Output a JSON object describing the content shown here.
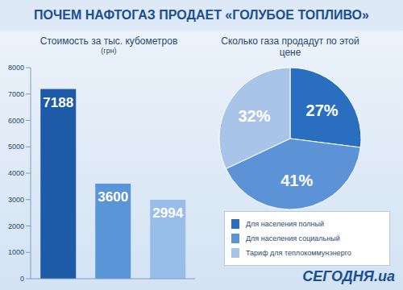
{
  "title": "ПОЧЕМ НАФТОГАЗ ПРОДАЕТ «ГОЛУБОЕ ТОПЛИВО»",
  "source": "СЕГОДНЯ.ua",
  "chart_data": [
    {
      "type": "bar",
      "title": "Стоимость за тыс. кубометров",
      "subtitle": "(грн)",
      "categories": [
        "Для населения полный",
        "Для населения социальный",
        "Тариф для теплокоммунэнерго"
      ],
      "values": [
        7188,
        3600,
        2994
      ],
      "colors": [
        "#1d5aa8",
        "#5a95d8",
        "#98bde8"
      ],
      "ylim": [
        0,
        8000
      ],
      "yticks": [
        0,
        1000,
        2000,
        3000,
        4000,
        5000,
        6000,
        7000,
        8000
      ],
      "grid": false,
      "data_labels": true,
      "tick_labels": "y"
    },
    {
      "type": "pie",
      "title": "Сколько газа продадут по этой цене",
      "categories": [
        "Для населения полный",
        "Для населения социальный",
        "Тариф для теплокоммунэнерго"
      ],
      "values": [
        27,
        41,
        32
      ],
      "value_labels": [
        "27%",
        "41%",
        "32%"
      ],
      "colors": [
        "#2a6fbf",
        "#5c92d6",
        "#a8c4e8"
      ],
      "data_labels": true,
      "legend": "bottom right"
    }
  ]
}
